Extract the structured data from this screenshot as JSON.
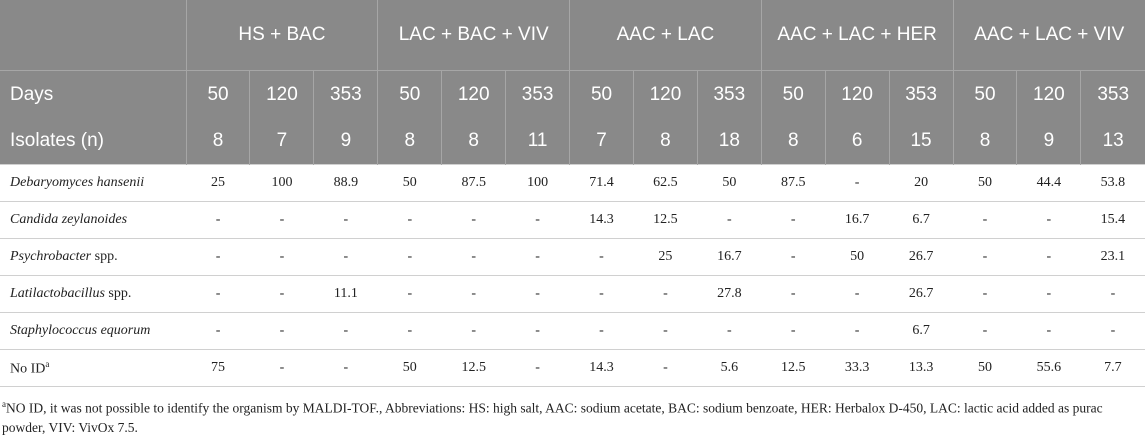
{
  "table": {
    "groups": [
      "HS + BAC",
      "LAC + BAC + VIV",
      "AAC + LAC",
      "AAC + LAC + HER",
      "AAC + LAC + VIV"
    ],
    "days_label": "Days",
    "days": [
      50,
      120,
      353,
      50,
      120,
      353,
      50,
      120,
      353,
      50,
      120,
      353,
      50,
      120,
      353
    ],
    "isolates_label": "Isolates (n)",
    "isolates": [
      8,
      7,
      9,
      8,
      8,
      11,
      7,
      8,
      18,
      8,
      6,
      15,
      8,
      9,
      13
    ],
    "rows": [
      {
        "label": "Debaryomyces hansenii",
        "values": [
          25,
          100,
          88.9,
          50,
          87.5,
          100,
          71.4,
          62.5,
          50,
          87.5,
          "-",
          20,
          50,
          44.4,
          53.8
        ]
      },
      {
        "label": "Candida zeylanoides",
        "values": [
          "-",
          "-",
          "-",
          "-",
          "-",
          "-",
          14.3,
          12.5,
          "-",
          "-",
          16.7,
          6.7,
          "-",
          "-",
          15.4
        ]
      },
      {
        "label": "Psychrobacter",
        "suffix": "spp.",
        "values": [
          "-",
          "-",
          "-",
          "-",
          "-",
          "-",
          "-",
          25,
          16.7,
          "-",
          50,
          26.7,
          "-",
          "-",
          23.1
        ]
      },
      {
        "label": "Latilactobacillus",
        "suffix": "spp.",
        "values": [
          "-",
          "-",
          11.1,
          "-",
          "-",
          "-",
          "-",
          "-",
          27.8,
          "-",
          "-",
          26.7,
          "-",
          "-",
          "-"
        ]
      },
      {
        "label": "Staphylococcus equorum",
        "values": [
          "-",
          "-",
          "-",
          "-",
          "-",
          "-",
          "-",
          "-",
          "-",
          "-",
          "-",
          6.7,
          "-",
          "-",
          "-"
        ]
      },
      {
        "plain_label": "No ID",
        "sup": "a",
        "values": [
          75,
          "-",
          "-",
          50,
          12.5,
          "-",
          14.3,
          "-",
          5.6,
          12.5,
          33.3,
          13.3,
          50,
          55.6,
          7.7
        ]
      }
    ]
  },
  "footnote": {
    "sup": "a",
    "text": "NO ID, it was not possible to identify the organism by MALDI-TOF., Abbreviations: HS: high salt, AAC: sodium acetate, BAC: sodium benzoate, HER: Herbalox D-450, LAC: lactic acid added as purac powder, VIV: VivOx 7.5."
  }
}
